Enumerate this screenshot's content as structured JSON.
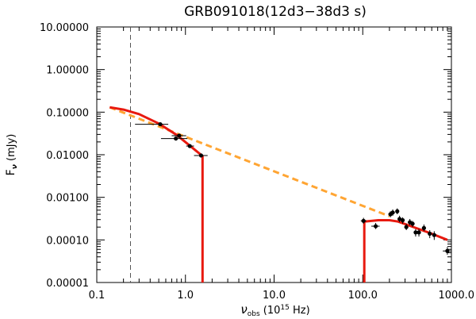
{
  "chart_data": {
    "type": "scatter",
    "title": "GRB091018(12d3−38d3 s)",
    "xlabel": {
      "symbol": "ν",
      "subscript": "obs",
      "rest": " (10",
      "exp": "15",
      "unit": " Hz)"
    },
    "ylabel": {
      "symbol": "F",
      "subscript": "ν",
      "unit": " (mJy)"
    },
    "x_scale": "log",
    "y_scale": "log",
    "xlim": [
      0.1,
      1000.0
    ],
    "ylim": [
      1e-05,
      10.0
    ],
    "x_ticks": [
      {
        "value": 0.1,
        "label": "0.1"
      },
      {
        "value": 1.0,
        "label": "1.0"
      },
      {
        "value": 10.0,
        "label": "10.0"
      },
      {
        "value": 100.0,
        "label": "100.0"
      },
      {
        "value": 1000.0,
        "label": "1000.0"
      }
    ],
    "y_ticks": [
      {
        "value": 1e-05,
        "label": "0.00001"
      },
      {
        "value": 0.0001,
        "label": "0.00010"
      },
      {
        "value": 0.001,
        "label": "0.00100"
      },
      {
        "value": 0.01,
        "label": "0.01000"
      },
      {
        "value": 0.1,
        "label": "0.10000"
      },
      {
        "value": 1.0,
        "label": "1.00000"
      },
      {
        "value": 10.0,
        "label": "10.00000"
      }
    ],
    "grid": false,
    "legend": "none",
    "vertical_reference_line": {
      "x": 0.24,
      "style": "dashed",
      "color": "#555555"
    },
    "series": [
      {
        "kind": "points",
        "color": "#000000",
        "points": [
          {
            "x": 0.52,
            "y": 0.052,
            "xerr": [
              0.27,
              0.64
            ]
          },
          {
            "x": 0.85,
            "y": 0.028,
            "xerr": [
              0.7,
              1.02
            ]
          },
          {
            "x": 0.78,
            "y": 0.024,
            "xerr": [
              0.53,
              1.05
            ]
          },
          {
            "x": 1.12,
            "y": 0.016,
            "xerr": [
              1.02,
              1.25
            ]
          },
          {
            "x": 1.5,
            "y": 0.0096,
            "xerr": [
              1.25,
              1.78
            ]
          },
          {
            "x": 102,
            "y": 0.00028,
            "xerr": [
              95,
              110
            ],
            "yerr": [
              0.00024,
              0.00033
            ]
          },
          {
            "x": 140,
            "y": 0.00021,
            "xerr": [
              125,
              155
            ],
            "yerr": [
              0.00018,
              0.00025
            ]
          },
          {
            "x": 205,
            "y": 0.0004,
            "xerr": [
              195,
              215
            ],
            "yerr": [
              0.00034,
              0.00047
            ]
          },
          {
            "x": 218,
            "y": 0.00044,
            "xerr": [
              208,
              230
            ],
            "yerr": [
              0.00037,
              0.00052
            ]
          },
          {
            "x": 245,
            "y": 0.00047,
            "xerr": [
              235,
              255
            ],
            "yerr": [
              0.0004,
              0.00055
            ]
          },
          {
            "x": 260,
            "y": 0.00031,
            "xerr": [
              250,
              270
            ],
            "yerr": [
              0.00026,
              0.00037
            ]
          },
          {
            "x": 282,
            "y": 0.00029,
            "xerr": [
              270,
              295
            ],
            "yerr": [
              0.00024,
              0.00034
            ]
          },
          {
            "x": 310,
            "y": 0.0002,
            "xerr": [
              295,
              325
            ],
            "yerr": [
              0.00017,
              0.00024
            ]
          },
          {
            "x": 340,
            "y": 0.00026,
            "xerr": [
              325,
              355
            ],
            "yerr": [
              0.00022,
              0.00031
            ]
          },
          {
            "x": 365,
            "y": 0.00024,
            "xerr": [
              350,
              380
            ],
            "yerr": [
              0.0002,
              0.00028
            ]
          },
          {
            "x": 395,
            "y": 0.00015,
            "xerr": [
              380,
              412
            ],
            "yerr": [
              0.00012,
              0.00018
            ]
          },
          {
            "x": 430,
            "y": 0.00015,
            "xerr": [
              412,
              450
            ],
            "yerr": [
              0.00012,
              0.00018
            ]
          },
          {
            "x": 490,
            "y": 0.00019,
            "xerr": [
              465,
              515
            ],
            "yerr": [
              0.00016,
              0.00023
            ]
          },
          {
            "x": 570,
            "y": 0.00014,
            "xerr": [
              545,
              595
            ],
            "yerr": [
              0.00011,
              0.00017
            ]
          },
          {
            "x": 640,
            "y": 0.00013,
            "xerr": [
              615,
              665
            ],
            "yerr": [
              0.0001,
              0.00016
            ]
          },
          {
            "x": 900,
            "y": 5.5e-05,
            "xerr": [
              800,
              1000
            ],
            "yerr": [
              4.5e-05,
              6.8e-05
            ]
          }
        ]
      },
      {
        "kind": "line",
        "style": "dashed",
        "color": "#ffa533",
        "points": [
          [
            0.14,
            0.13
          ],
          [
            200,
            0.00036
          ]
        ]
      },
      {
        "kind": "line",
        "style": "solid",
        "color": "#e8190f",
        "points": [
          [
            0.14,
            0.13
          ],
          [
            0.2,
            0.115
          ],
          [
            0.3,
            0.09
          ],
          [
            0.5,
            0.054
          ],
          [
            0.8,
            0.029
          ],
          [
            1.2,
            0.0145
          ],
          [
            1.56,
            0.0093
          ],
          [
            1.56,
            1e-05
          ]
        ]
      },
      {
        "kind": "line",
        "style": "solid",
        "color": "#e8190f",
        "points": [
          [
            104,
            1e-05
          ],
          [
            104,
            0.00027
          ],
          [
            150,
            0.00029
          ],
          [
            200,
            0.00029
          ],
          [
            250,
            0.00027
          ],
          [
            400,
            0.00019
          ],
          [
            600,
            0.00014
          ],
          [
            900,
            0.0001
          ]
        ]
      }
    ]
  }
}
